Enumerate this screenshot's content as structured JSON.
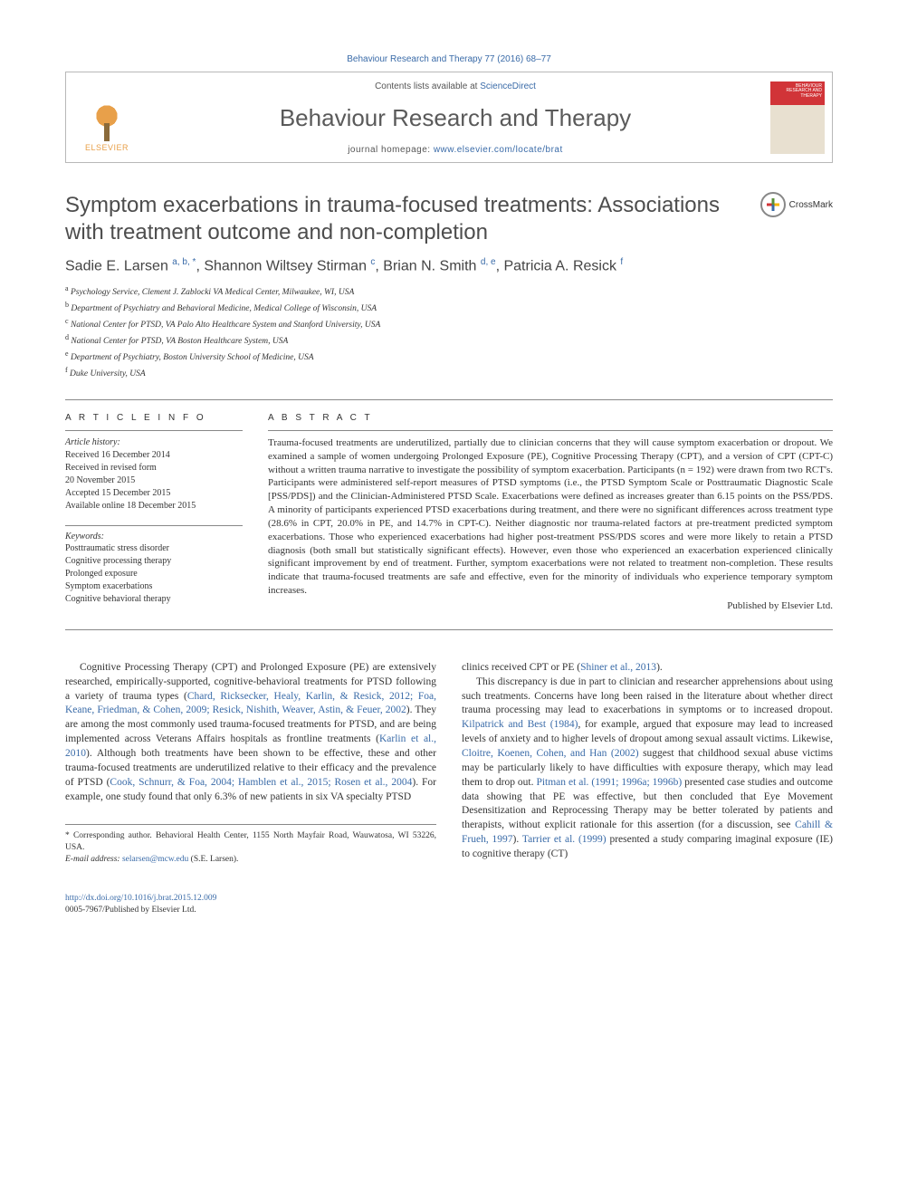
{
  "header": {
    "citation": "Behaviour Research and Therapy 77 (2016) 68–77",
    "contents_prefix": "Contents lists available at ",
    "contents_link": "ScienceDirect",
    "journal_name": "Behaviour Research and Therapy",
    "homepage_prefix": "journal homepage: ",
    "homepage_url": "www.elsevier.com/locate/brat",
    "elsevier_label": "ELSEVIER",
    "cover_text": "BEHAVIOUR RESEARCH AND THERAPY",
    "crossmark_label": "CrossMark"
  },
  "article": {
    "title": "Symptom exacerbations in trauma-focused treatments: Associations with treatment outcome and non-completion",
    "authors_html": "Sadie E. Larsen <sup>a, b, *</sup>, Shannon Wiltsey Stirman <sup>c</sup>, Brian N. Smith <sup>d, e</sup>, Patricia A. Resick <sup>f</sup>",
    "affiliations": [
      "a Psychology Service, Clement J. Zablocki VA Medical Center, Milwaukee, WI, USA",
      "b Department of Psychiatry and Behavioral Medicine, Medical College of Wisconsin, USA",
      "c National Center for PTSD, VA Palo Alto Healthcare System and Stanford University, USA",
      "d National Center for PTSD, VA Boston Healthcare System, USA",
      "e Department of Psychiatry, Boston University School of Medicine, USA",
      "f Duke University, USA"
    ]
  },
  "info": {
    "heading": "A R T I C L E  I N F O",
    "history_label": "Article history:",
    "history": [
      "Received 16 December 2014",
      "Received in revised form",
      "20 November 2015",
      "Accepted 15 December 2015",
      "Available online 18 December 2015"
    ],
    "keywords_label": "Keywords:",
    "keywords": [
      "Posttraumatic stress disorder",
      "Cognitive processing therapy",
      "Prolonged exposure",
      "Symptom exacerbations",
      "Cognitive behavioral therapy"
    ]
  },
  "abstract": {
    "heading": "A B S T R A C T",
    "text": "Trauma-focused treatments are underutilized, partially due to clinician concerns that they will cause symptom exacerbation or dropout. We examined a sample of women undergoing Prolonged Exposure (PE), Cognitive Processing Therapy (CPT), and a version of CPT (CPT-C) without a written trauma narrative to investigate the possibility of symptom exacerbation. Participants (n = 192) were drawn from two RCT's. Participants were administered self-report measures of PTSD symptoms (i.e., the PTSD Symptom Scale or Posttraumatic Diagnostic Scale [PSS/PDS]) and the Clinician-Administered PTSD Scale. Exacerbations were defined as increases greater than 6.15 points on the PSS/PDS. A minority of participants experienced PTSD exacerbations during treatment, and there were no significant differences across treatment type (28.6% in CPT, 20.0% in PE, and 14.7% in CPT-C). Neither diagnostic nor trauma-related factors at pre-treatment predicted symptom exacerbations. Those who experienced exacerbations had higher post-treatment PSS/PDS scores and were more likely to retain a PTSD diagnosis (both small but statistically significant effects). However, even those who experienced an exacerbation experienced clinically significant improvement by end of treatment. Further, symptom exacerbations were not related to treatment non-completion. These results indicate that trauma-focused treatments are safe and effective, even for the minority of individuals who experience temporary symptom increases.",
    "published_by": "Published by Elsevier Ltd."
  },
  "body": {
    "col1_p1_a": "Cognitive Processing Therapy (CPT) and Prolonged Exposure (PE) are extensively researched, empirically-supported, cognitive-behavioral treatments for PTSD following a variety of trauma types (",
    "col1_p1_cite1": "Chard, Ricksecker, Healy, Karlin, & Resick, 2012; Foa, Keane, Friedman, & Cohen, 2009; Resick, Nishith, Weaver, Astin, & Feuer, 2002",
    "col1_p1_b": "). They are among the most commonly used trauma-focused treatments for PTSD, and are being implemented across Veterans Affairs hospitals as frontline treatments (",
    "col1_p1_cite2": "Karlin et al., 2010",
    "col1_p1_c": "). Although both treatments have been shown to be effective, these and other trauma-focused treatments are underutilized relative to their efficacy and the prevalence of PTSD (",
    "col1_p1_cite3": "Cook, Schnurr, & Foa, 2004; Hamblen et al., 2015; Rosen et al., 2004",
    "col1_p1_d": "). For example, one study found that only 6.3% of new patients in six VA specialty PTSD",
    "col2_p1_a": "clinics received CPT or PE (",
    "col2_p1_cite1": "Shiner et al., 2013",
    "col2_p1_b": ").",
    "col2_p2_a": "This discrepancy is due in part to clinician and researcher apprehensions about using such treatments. Concerns have long been raised in the literature about whether direct trauma processing may lead to exacerbations in symptoms or to increased dropout. ",
    "col2_p2_cite1": "Kilpatrick and Best (1984)",
    "col2_p2_b": ", for example, argued that exposure may lead to increased levels of anxiety and to higher levels of dropout among sexual assault victims. Likewise, ",
    "col2_p2_cite2": "Cloitre, Koenen, Cohen, and Han (2002)",
    "col2_p2_c": " suggest that childhood sexual abuse victims may be particularly likely to have difficulties with exposure therapy, which may lead them to drop out. ",
    "col2_p2_cite3": "Pitman et al. (1991; 1996a; 1996b)",
    "col2_p2_d": " presented case studies and outcome data showing that PE was effective, but then concluded that Eye Movement Desensitization and Reprocessing Therapy may be better tolerated by patients and therapists, without explicit rationale for this assertion (for a discussion, see ",
    "col2_p2_cite4": "Cahill & Frueh, 1997",
    "col2_p2_e": "). ",
    "col2_p2_cite5": "Tarrier et al. (1999)",
    "col2_p2_f": " presented a study comparing imaginal exposure (IE) to cognitive therapy (CT)"
  },
  "footnotes": {
    "corr": "* Corresponding author. Behavioral Health Center, 1155 North Mayfair Road, Wauwatosa, WI 53226, USA.",
    "email_label": "E-mail address: ",
    "email": "selarsen@mcw.edu",
    "email_suffix": " (S.E. Larsen)."
  },
  "footer": {
    "doi": "http://dx.doi.org/10.1016/j.brat.2015.12.009",
    "copyright": "0005-7967/Published by Elsevier Ltd."
  },
  "colors": {
    "link": "#3a6ba8",
    "text": "#333333",
    "rule": "#888888",
    "cover_red": "#d13438",
    "elsevier_orange": "#e8a04a"
  }
}
